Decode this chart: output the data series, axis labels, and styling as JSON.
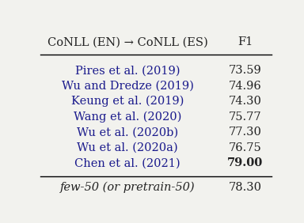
{
  "title": "CoNLL (EN) → CoNLL (ES)",
  "col_header": "F1",
  "rows": [
    {
      "label": "Pires et al. (2019)",
      "value": "73.59",
      "bold": false
    },
    {
      "label": "Wu and Dredze (2019)",
      "value": "74.96",
      "bold": false
    },
    {
      "label": "Keung et al. (2019)",
      "value": "74.30",
      "bold": false
    },
    {
      "label": "Wang et al. (2020)",
      "value": "75.77",
      "bold": false
    },
    {
      "label": "Wu et al. (2020b)",
      "value": "77.30",
      "bold": false
    },
    {
      "label": "Wu et al. (2020a)",
      "value": "76.75",
      "bold": false
    },
    {
      "label": "Chen et al. (2021)",
      "value": "79.00",
      "bold": true
    }
  ],
  "footer_row": {
    "label": "few-50 (or pretrain-50)",
    "value": "78.30",
    "italic": true
  },
  "text_color_blue": "#1a1a8c",
  "text_color_black": "#222222",
  "bg_color": "#f2f2ee",
  "font_size": 10.5,
  "header_font_size": 10.5
}
